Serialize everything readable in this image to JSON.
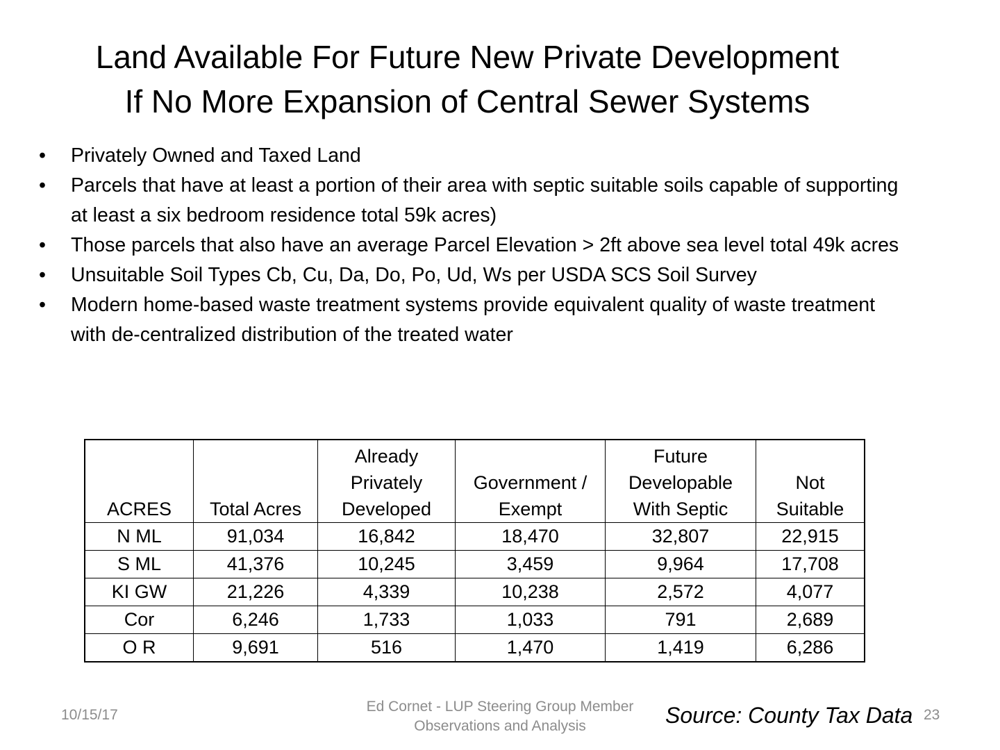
{
  "title": {
    "line1": "Land Available For Future New Private Development",
    "line2": "If No More Expansion of Central Sewer Systems"
  },
  "bullets": [
    "Privately Owned and Taxed Land",
    "Parcels that have at least a portion of their area with septic suitable soils capable of supporting at least a six bedroom residence total 59k acres)",
    "Those parcels that also have an average Parcel Elevation > 2ft   above sea level total 49k acres",
    "Unsuitable Soil Types Cb, Cu, Da, Do, Po, Ud, Ws per USDA SCS Soil Survey",
    "Modern home-based waste treatment systems provide equivalent quality of waste treatment with de-centralized distribution of the treated water"
  ],
  "bullet_glyph": "•",
  "table": {
    "headers": {
      "acres": [
        "ACRES"
      ],
      "total": [
        "Total Acres"
      ],
      "developed": [
        "Already",
        "Privately",
        "Developed"
      ],
      "government": [
        "Government /",
        "Exempt"
      ],
      "future": [
        "Future",
        "Developable",
        "With Septic"
      ],
      "not_suitable": [
        "Not",
        "Suitable"
      ]
    },
    "rows": [
      [
        "N ML",
        "91,034",
        "16,842",
        "18,470",
        "32,807",
        "22,915"
      ],
      [
        "S ML",
        "41,376",
        "10,245",
        "3,459",
        "9,964",
        "17,708"
      ],
      [
        "KI GW",
        "21,226",
        "4,339",
        "10,238",
        "2,572",
        "4,077"
      ],
      [
        "Cor",
        "6,246",
        "1,733",
        "1,033",
        "791",
        "2,689"
      ],
      [
        "O R",
        "9,691",
        "516",
        "1,470",
        "1,419",
        "6,286"
      ]
    ]
  },
  "footer": {
    "date": "10/15/17",
    "author_line1": "Ed Cornet - LUP Steering Group Member",
    "author_line2": "Observations and Analysis",
    "source": "Source: County Tax Data",
    "page_number": "23"
  }
}
